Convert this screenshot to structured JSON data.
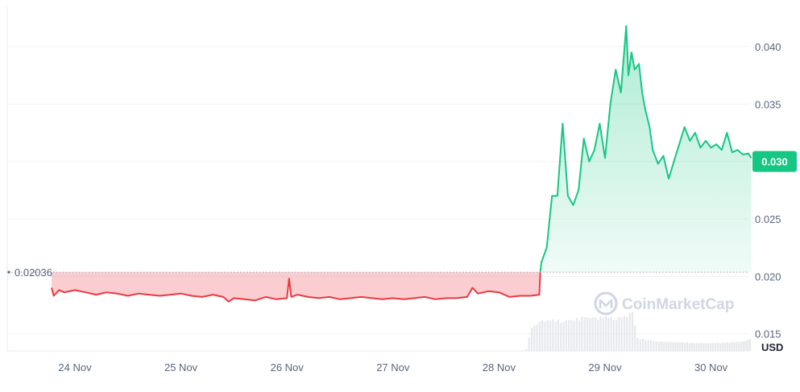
{
  "chart_data": {
    "type": "area",
    "currency": "USD",
    "watermark": "CoinMarketCap",
    "baseline_value": 0.02036,
    "baseline_label": "0.02036",
    "current_value": 0.03,
    "current_label": "0.030",
    "ylim": [
      0.0135,
      0.0435
    ],
    "y_ticks": [
      {
        "value": 0.015,
        "label": "0.015"
      },
      {
        "value": 0.02,
        "label": "0.020"
      },
      {
        "value": 0.025,
        "label": "0.025"
      },
      {
        "value": 0.03,
        "label": "0.030"
      },
      {
        "value": 0.035,
        "label": "0.035"
      },
      {
        "value": 0.04,
        "label": "0.040"
      }
    ],
    "x_ticks": [
      {
        "label": "24 Nov",
        "t": 0.0
      },
      {
        "label": "25 Nov",
        "t": 1.0
      },
      {
        "label": "26 Nov",
        "t": 2.0
      },
      {
        "label": "27 Nov",
        "t": 3.0
      },
      {
        "label": "28 Nov",
        "t": 4.0
      },
      {
        "label": "29 Nov",
        "t": 5.0
      },
      {
        "label": "30 Nov",
        "t": 6.0
      }
    ],
    "colors": {
      "up": "#16c784",
      "down": "#ea3943",
      "grid": "#eff2f5",
      "axis_text": "#58667e",
      "volume": "#e6e8ec"
    },
    "series": [
      {
        "x": [
          -0.22,
          -0.2,
          -0.15,
          -0.1,
          0.0,
          0.1,
          0.2,
          0.3,
          0.4,
          0.5,
          0.6,
          0.7,
          0.8,
          0.9,
          1.0,
          1.1,
          1.2,
          1.3,
          1.4,
          1.45,
          1.5,
          1.6,
          1.7,
          1.8,
          1.9,
          2.0,
          2.02,
          2.04,
          2.1,
          2.2,
          2.3,
          2.4,
          2.5,
          2.6,
          2.7,
          2.8,
          2.9,
          3.0,
          3.1,
          3.2,
          3.3,
          3.4,
          3.5,
          3.6,
          3.7,
          3.75,
          3.8,
          3.9,
          4.0,
          4.1,
          4.2,
          4.3,
          4.38,
          4.39,
          4.4,
          4.45,
          4.5,
          4.55,
          4.6,
          4.65,
          4.7,
          4.75,
          4.8,
          4.85,
          4.9,
          4.95,
          5.0,
          5.05,
          5.1,
          5.15,
          5.2,
          5.22,
          5.25,
          5.28,
          5.32,
          5.35,
          5.38,
          5.42,
          5.45,
          5.5,
          5.55,
          5.6,
          5.65,
          5.7,
          5.75,
          5.8,
          5.85,
          5.9,
          5.95,
          6.0,
          6.05,
          6.1,
          6.15,
          6.2,
          6.25,
          6.3,
          6.35,
          6.38
        ],
        "y": [
          0.019,
          0.0183,
          0.0188,
          0.0186,
          0.0188,
          0.0186,
          0.0184,
          0.0186,
          0.0185,
          0.0183,
          0.0185,
          0.0184,
          0.0183,
          0.0184,
          0.0185,
          0.0183,
          0.0182,
          0.0184,
          0.0182,
          0.0178,
          0.0181,
          0.018,
          0.0179,
          0.0182,
          0.018,
          0.0181,
          0.0198,
          0.0182,
          0.0184,
          0.0182,
          0.0181,
          0.0182,
          0.018,
          0.0181,
          0.0182,
          0.0181,
          0.018,
          0.0181,
          0.018,
          0.0181,
          0.0182,
          0.018,
          0.0181,
          0.0181,
          0.0182,
          0.019,
          0.0185,
          0.0187,
          0.0186,
          0.0182,
          0.0183,
          0.0183,
          0.0184,
          0.0204,
          0.0212,
          0.0225,
          0.027,
          0.027,
          0.0333,
          0.027,
          0.0262,
          0.0275,
          0.032,
          0.03,
          0.031,
          0.0333,
          0.0303,
          0.035,
          0.038,
          0.036,
          0.0418,
          0.0375,
          0.0395,
          0.038,
          0.0385,
          0.036,
          0.0345,
          0.033,
          0.031,
          0.0298,
          0.0305,
          0.0285,
          0.03,
          0.0315,
          0.033,
          0.0318,
          0.0325,
          0.0312,
          0.0318,
          0.0312,
          0.0315,
          0.031,
          0.0325,
          0.0308,
          0.031,
          0.0306,
          0.0307,
          0.0303
        ]
      }
    ],
    "volume": {
      "x": [
        4.25,
        4.3,
        4.4,
        4.5,
        4.6,
        4.7,
        4.8,
        4.9,
        5.0,
        5.1,
        5.2,
        5.25,
        5.3,
        5.4,
        5.5,
        5.7,
        5.9,
        6.1,
        6.3,
        6.38
      ],
      "v": [
        0.05,
        0.55,
        0.7,
        0.72,
        0.7,
        0.74,
        0.78,
        0.76,
        0.8,
        0.75,
        0.82,
        0.9,
        0.3,
        0.25,
        0.22,
        0.2,
        0.18,
        0.19,
        0.22,
        0.3
      ]
    }
  }
}
